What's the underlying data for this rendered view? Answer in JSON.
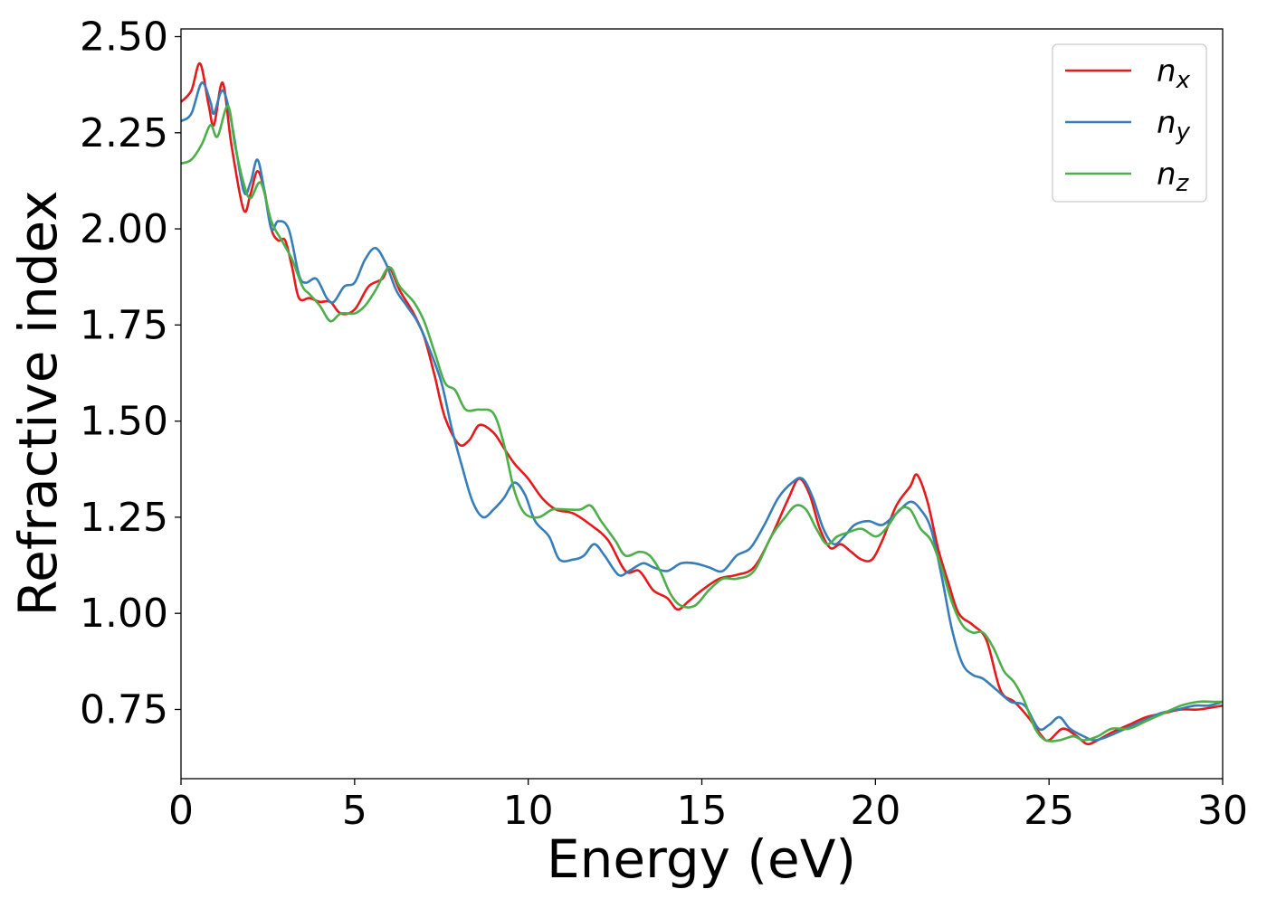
{
  "chart_data": {
    "type": "line",
    "xlabel": "Energy (eV)",
    "ylabel": "Refractive index",
    "xlim": [
      0,
      30
    ],
    "ylim": [
      0.57,
      2.52
    ],
    "x_ticks": [
      0,
      5,
      10,
      15,
      20,
      25,
      30
    ],
    "x_tick_labels": [
      "0",
      "5",
      "10",
      "15",
      "20",
      "25",
      "30"
    ],
    "y_ticks": [
      0.75,
      1.0,
      1.25,
      1.5,
      1.75,
      2.0,
      2.25,
      2.5
    ],
    "y_tick_labels": [
      "0.75",
      "1.00",
      "1.25",
      "1.50",
      "1.75",
      "2.00",
      "2.25",
      "2.50"
    ],
    "grid": false,
    "legend_position": "top-right",
    "series": [
      {
        "name": "n",
        "subscript": "x",
        "color": "#e41a1c",
        "points": [
          [
            0,
            2.33
          ],
          [
            0.3,
            2.36
          ],
          [
            0.55,
            2.43
          ],
          [
            0.8,
            2.32
          ],
          [
            0.95,
            2.27
          ],
          [
            1.2,
            2.38
          ],
          [
            1.45,
            2.22
          ],
          [
            1.8,
            2.05
          ],
          [
            2.0,
            2.09
          ],
          [
            2.2,
            2.15
          ],
          [
            2.4,
            2.1
          ],
          [
            2.6,
            2.0
          ],
          [
            2.8,
            1.97
          ],
          [
            3.0,
            1.97
          ],
          [
            3.2,
            1.9
          ],
          [
            3.4,
            1.82
          ],
          [
            3.7,
            1.82
          ],
          [
            4.0,
            1.81
          ],
          [
            4.3,
            1.81
          ],
          [
            4.6,
            1.78
          ],
          [
            5.0,
            1.79
          ],
          [
            5.4,
            1.85
          ],
          [
            5.8,
            1.87
          ],
          [
            6.0,
            1.9
          ],
          [
            6.3,
            1.84
          ],
          [
            6.7,
            1.78
          ],
          [
            7.0,
            1.72
          ],
          [
            7.3,
            1.62
          ],
          [
            7.6,
            1.51
          ],
          [
            8.0,
            1.44
          ],
          [
            8.3,
            1.45
          ],
          [
            8.6,
            1.49
          ],
          [
            9.0,
            1.47
          ],
          [
            9.3,
            1.43
          ],
          [
            9.6,
            1.39
          ],
          [
            10.0,
            1.35
          ],
          [
            10.4,
            1.3
          ],
          [
            10.8,
            1.27
          ],
          [
            11.3,
            1.26
          ],
          [
            11.8,
            1.23
          ],
          [
            12.3,
            1.19
          ],
          [
            12.8,
            1.11
          ],
          [
            13.2,
            1.11
          ],
          [
            13.6,
            1.06
          ],
          [
            14.0,
            1.04
          ],
          [
            14.3,
            1.01
          ],
          [
            14.6,
            1.03
          ],
          [
            15.0,
            1.06
          ],
          [
            15.5,
            1.09
          ],
          [
            16.0,
            1.1
          ],
          [
            16.5,
            1.12
          ],
          [
            17.0,
            1.2
          ],
          [
            17.5,
            1.3
          ],
          [
            17.8,
            1.35
          ],
          [
            18.1,
            1.31
          ],
          [
            18.4,
            1.22
          ],
          [
            18.7,
            1.17
          ],
          [
            19.0,
            1.18
          ],
          [
            19.3,
            1.16
          ],
          [
            19.6,
            1.14
          ],
          [
            19.9,
            1.14
          ],
          [
            20.2,
            1.19
          ],
          [
            20.6,
            1.28
          ],
          [
            21.0,
            1.33
          ],
          [
            21.2,
            1.36
          ],
          [
            21.5,
            1.29
          ],
          [
            21.8,
            1.17
          ],
          [
            22.1,
            1.08
          ],
          [
            22.4,
            1.0
          ],
          [
            22.8,
            0.97
          ],
          [
            23.2,
            0.93
          ],
          [
            23.6,
            0.8
          ],
          [
            24.0,
            0.77
          ],
          [
            24.4,
            0.73
          ],
          [
            24.8,
            0.68
          ],
          [
            25.0,
            0.67
          ],
          [
            25.4,
            0.7
          ],
          [
            25.8,
            0.68
          ],
          [
            26.1,
            0.66
          ],
          [
            26.4,
            0.67
          ],
          [
            26.8,
            0.69
          ],
          [
            27.3,
            0.71
          ],
          [
            27.8,
            0.73
          ],
          [
            28.3,
            0.74
          ],
          [
            28.8,
            0.75
          ],
          [
            29.3,
            0.75
          ],
          [
            30.0,
            0.76
          ]
        ]
      },
      {
        "name": "n",
        "subscript": "y",
        "color": "#377eb8",
        "points": [
          [
            0,
            2.28
          ],
          [
            0.3,
            2.3
          ],
          [
            0.6,
            2.38
          ],
          [
            0.85,
            2.33
          ],
          [
            0.95,
            2.3
          ],
          [
            1.2,
            2.36
          ],
          [
            1.45,
            2.28
          ],
          [
            1.8,
            2.1
          ],
          [
            2.0,
            2.12
          ],
          [
            2.2,
            2.18
          ],
          [
            2.4,
            2.1
          ],
          [
            2.6,
            2.0
          ],
          [
            2.8,
            2.02
          ],
          [
            3.1,
            2.0
          ],
          [
            3.4,
            1.88
          ],
          [
            3.6,
            1.86
          ],
          [
            3.9,
            1.87
          ],
          [
            4.2,
            1.82
          ],
          [
            4.4,
            1.81
          ],
          [
            4.7,
            1.85
          ],
          [
            5.0,
            1.86
          ],
          [
            5.3,
            1.92
          ],
          [
            5.6,
            1.95
          ],
          [
            5.9,
            1.91
          ],
          [
            6.2,
            1.84
          ],
          [
            6.5,
            1.8
          ],
          [
            6.8,
            1.76
          ],
          [
            7.1,
            1.7
          ],
          [
            7.5,
            1.6
          ],
          [
            7.8,
            1.48
          ],
          [
            8.1,
            1.38
          ],
          [
            8.4,
            1.29
          ],
          [
            8.7,
            1.25
          ],
          [
            9.0,
            1.27
          ],
          [
            9.3,
            1.3
          ],
          [
            9.6,
            1.34
          ],
          [
            9.9,
            1.31
          ],
          [
            10.2,
            1.24
          ],
          [
            10.6,
            1.2
          ],
          [
            10.9,
            1.14
          ],
          [
            11.3,
            1.14
          ],
          [
            11.6,
            1.15
          ],
          [
            11.9,
            1.18
          ],
          [
            12.2,
            1.15
          ],
          [
            12.6,
            1.1
          ],
          [
            12.9,
            1.11
          ],
          [
            13.3,
            1.13
          ],
          [
            13.6,
            1.12
          ],
          [
            14.0,
            1.11
          ],
          [
            14.4,
            1.13
          ],
          [
            14.8,
            1.13
          ],
          [
            15.2,
            1.12
          ],
          [
            15.6,
            1.11
          ],
          [
            16.0,
            1.15
          ],
          [
            16.4,
            1.17
          ],
          [
            16.8,
            1.23
          ],
          [
            17.2,
            1.3
          ],
          [
            17.6,
            1.34
          ],
          [
            17.9,
            1.35
          ],
          [
            18.2,
            1.3
          ],
          [
            18.5,
            1.22
          ],
          [
            18.8,
            1.18
          ],
          [
            19.1,
            1.2
          ],
          [
            19.4,
            1.23
          ],
          [
            19.8,
            1.24
          ],
          [
            20.2,
            1.23
          ],
          [
            20.6,
            1.26
          ],
          [
            21.0,
            1.29
          ],
          [
            21.3,
            1.27
          ],
          [
            21.6,
            1.22
          ],
          [
            21.9,
            1.1
          ],
          [
            22.2,
            0.96
          ],
          [
            22.5,
            0.87
          ],
          [
            22.8,
            0.84
          ],
          [
            23.1,
            0.83
          ],
          [
            23.5,
            0.8
          ],
          [
            23.9,
            0.77
          ],
          [
            24.3,
            0.76
          ],
          [
            24.7,
            0.7
          ],
          [
            25.0,
            0.71
          ],
          [
            25.3,
            0.73
          ],
          [
            25.6,
            0.7
          ],
          [
            26.0,
            0.68
          ],
          [
            26.3,
            0.67
          ],
          [
            26.7,
            0.68
          ],
          [
            27.2,
            0.7
          ],
          [
            27.7,
            0.72
          ],
          [
            28.2,
            0.74
          ],
          [
            28.7,
            0.75
          ],
          [
            29.2,
            0.76
          ],
          [
            29.6,
            0.76
          ],
          [
            30.0,
            0.77
          ]
        ]
      },
      {
        "name": "n",
        "subscript": "z",
        "color": "#4daf4a",
        "points": [
          [
            0,
            2.17
          ],
          [
            0.3,
            2.18
          ],
          [
            0.6,
            2.22
          ],
          [
            0.85,
            2.27
          ],
          [
            1.05,
            2.24
          ],
          [
            1.35,
            2.32
          ],
          [
            1.55,
            2.22
          ],
          [
            1.8,
            2.12
          ],
          [
            2.0,
            2.08
          ],
          [
            2.3,
            2.12
          ],
          [
            2.6,
            2.02
          ],
          [
            2.9,
            1.97
          ],
          [
            3.2,
            1.92
          ],
          [
            3.5,
            1.85
          ],
          [
            3.7,
            1.83
          ],
          [
            4.0,
            1.8
          ],
          [
            4.3,
            1.76
          ],
          [
            4.6,
            1.78
          ],
          [
            5.0,
            1.78
          ],
          [
            5.3,
            1.8
          ],
          [
            5.6,
            1.84
          ],
          [
            6.0,
            1.9
          ],
          [
            6.3,
            1.85
          ],
          [
            6.7,
            1.81
          ],
          [
            7.0,
            1.76
          ],
          [
            7.3,
            1.68
          ],
          [
            7.6,
            1.6
          ],
          [
            7.9,
            1.58
          ],
          [
            8.2,
            1.53
          ],
          [
            8.6,
            1.53
          ],
          [
            9.0,
            1.52
          ],
          [
            9.3,
            1.44
          ],
          [
            9.6,
            1.32
          ],
          [
            9.9,
            1.26
          ],
          [
            10.3,
            1.25
          ],
          [
            10.7,
            1.27
          ],
          [
            11.1,
            1.27
          ],
          [
            11.5,
            1.27
          ],
          [
            11.8,
            1.28
          ],
          [
            12.1,
            1.24
          ],
          [
            12.5,
            1.19
          ],
          [
            12.8,
            1.15
          ],
          [
            13.2,
            1.16
          ],
          [
            13.5,
            1.15
          ],
          [
            13.8,
            1.11
          ],
          [
            14.1,
            1.05
          ],
          [
            14.4,
            1.02
          ],
          [
            14.8,
            1.02
          ],
          [
            15.2,
            1.06
          ],
          [
            15.6,
            1.09
          ],
          [
            16.0,
            1.09
          ],
          [
            16.5,
            1.11
          ],
          [
            17.0,
            1.2
          ],
          [
            17.4,
            1.25
          ],
          [
            17.7,
            1.28
          ],
          [
            18.0,
            1.27
          ],
          [
            18.3,
            1.22
          ],
          [
            18.6,
            1.18
          ],
          [
            18.9,
            1.2
          ],
          [
            19.2,
            1.21
          ],
          [
            19.6,
            1.22
          ],
          [
            20.0,
            1.2
          ],
          [
            20.3,
            1.22
          ],
          [
            20.7,
            1.27
          ],
          [
            21.0,
            1.27
          ],
          [
            21.3,
            1.22
          ],
          [
            21.6,
            1.19
          ],
          [
            21.9,
            1.12
          ],
          [
            22.2,
            1.03
          ],
          [
            22.5,
            0.97
          ],
          [
            22.8,
            0.95
          ],
          [
            23.1,
            0.95
          ],
          [
            23.4,
            0.91
          ],
          [
            23.7,
            0.85
          ],
          [
            24.0,
            0.82
          ],
          [
            24.3,
            0.77
          ],
          [
            24.6,
            0.7
          ],
          [
            24.9,
            0.67
          ],
          [
            25.3,
            0.67
          ],
          [
            25.7,
            0.68
          ],
          [
            26.0,
            0.67
          ],
          [
            26.4,
            0.68
          ],
          [
            26.8,
            0.7
          ],
          [
            27.3,
            0.7
          ],
          [
            27.8,
            0.72
          ],
          [
            28.3,
            0.74
          ],
          [
            28.8,
            0.76
          ],
          [
            29.3,
            0.77
          ],
          [
            29.7,
            0.77
          ],
          [
            30.0,
            0.77
          ]
        ]
      }
    ]
  }
}
